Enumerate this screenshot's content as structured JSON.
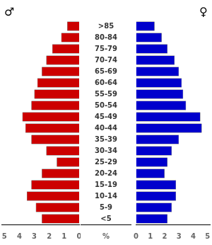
{
  "chart_data": {
    "type": "bar",
    "orientation": "horizontal",
    "categories": [
      "<5",
      "5-9",
      "10-14",
      "15-19",
      "20-24",
      "25-29",
      "30-34",
      "35-39",
      "40-44",
      "45-49",
      "50-54",
      "55-59",
      "60-64",
      "65-69",
      "70-74",
      "75-79",
      "80-84",
      ">85"
    ],
    "series": [
      {
        "name": "♂",
        "color": "#cc0000",
        "values": [
          2.5,
          2.9,
          3.5,
          3.2,
          2.5,
          1.5,
          2.2,
          3.2,
          3.6,
          3.8,
          3.2,
          3.0,
          2.8,
          2.5,
          2.2,
          1.8,
          1.2,
          0.8
        ]
      },
      {
        "name": "♀",
        "color": "#0000cc",
        "values": [
          2.2,
          2.5,
          2.8,
          2.8,
          2.0,
          2.2,
          2.5,
          3.0,
          4.6,
          4.5,
          3.5,
          3.3,
          3.2,
          3.0,
          2.7,
          2.2,
          1.8,
          1.3
        ]
      }
    ],
    "xlim": [
      0,
      5.2
    ],
    "xticks": [
      0,
      1,
      2,
      3,
      4,
      5
    ],
    "xlabel": "%",
    "grid": false
  }
}
